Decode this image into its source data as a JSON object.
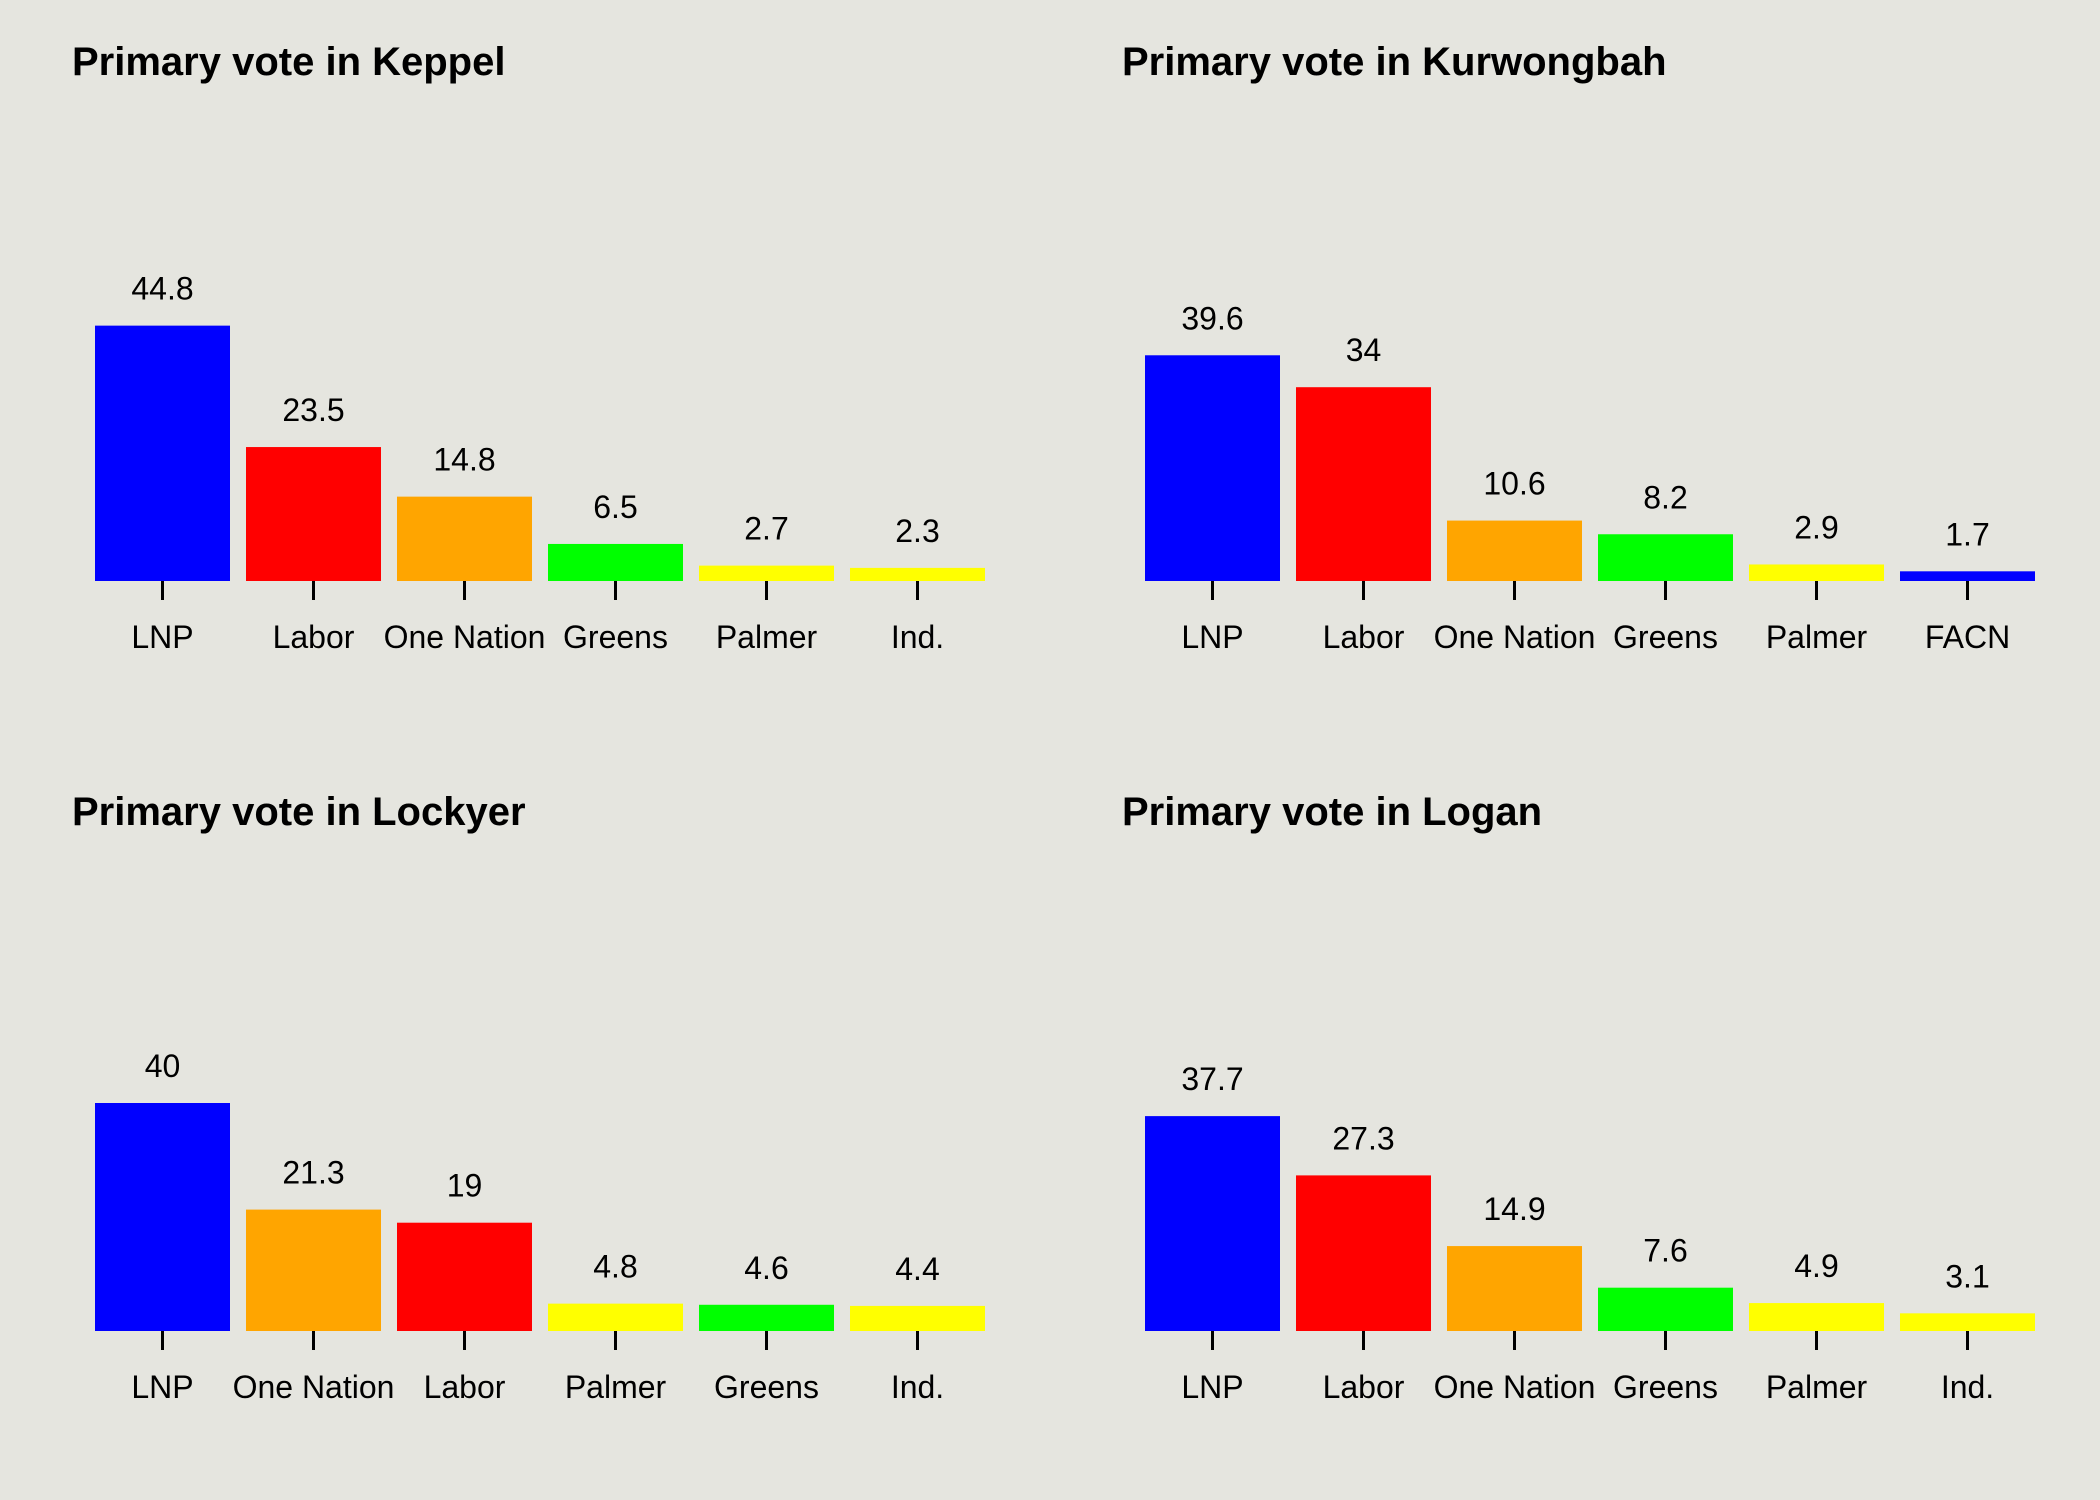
{
  "chart_data": [
    {
      "type": "bar",
      "title": "Primary vote in Keppel",
      "categories": [
        "LNP",
        "Labor",
        "One Nation",
        "Greens",
        "Palmer",
        "Ind."
      ],
      "values": [
        44.8,
        23.5,
        14.8,
        6.5,
        2.7,
        2.3
      ],
      "value_labels": [
        "44.8",
        "23.5",
        "14.8",
        "6.5",
        "2.7",
        "2.3"
      ],
      "colors": [
        "#0000ff",
        "#ff0000",
        "#ffa500",
        "#00ff00",
        "#ffff00",
        "#ffff00"
      ],
      "xlabel": "",
      "ylabel": "",
      "ylim": [
        0,
        100
      ],
      "grid": false,
      "legend": "none"
    },
    {
      "type": "bar",
      "title": "Primary vote in Kurwongbah",
      "categories": [
        "LNP",
        "Labor",
        "One Nation",
        "Greens",
        "Palmer",
        "FACN"
      ],
      "values": [
        39.6,
        34,
        10.6,
        8.2,
        2.9,
        1.7
      ],
      "value_labels": [
        "39.6",
        "34",
        "10.6",
        "8.2",
        "2.9",
        "1.7"
      ],
      "colors": [
        "#0000ff",
        "#ff0000",
        "#ffa500",
        "#00ff00",
        "#ffff00",
        "#0000ff"
      ],
      "xlabel": "",
      "ylabel": "",
      "ylim": [
        0,
        100
      ],
      "grid": false,
      "legend": "none"
    },
    {
      "type": "bar",
      "title": "Primary vote in Lockyer",
      "categories": [
        "LNP",
        "One Nation",
        "Labor",
        "Palmer",
        "Greens",
        "Ind."
      ],
      "values": [
        40,
        21.3,
        19,
        4.8,
        4.6,
        4.4
      ],
      "value_labels": [
        "40",
        "21.3",
        "19",
        "4.8",
        "4.6",
        "4.4"
      ],
      "colors": [
        "#0000ff",
        "#ffa500",
        "#ff0000",
        "#ffff00",
        "#00ff00",
        "#ffff00"
      ],
      "xlabel": "",
      "ylabel": "",
      "ylim": [
        0,
        100
      ],
      "grid": false,
      "legend": "none"
    },
    {
      "type": "bar",
      "title": "Primary vote in Logan",
      "categories": [
        "LNP",
        "Labor",
        "One Nation",
        "Greens",
        "Palmer",
        "Ind."
      ],
      "values": [
        37.7,
        27.3,
        14.9,
        7.6,
        4.9,
        3.1
      ],
      "value_labels": [
        "37.7",
        "27.3",
        "14.9",
        "7.6",
        "4.9",
        "3.1"
      ],
      "colors": [
        "#0000ff",
        "#ff0000",
        "#ffa500",
        "#00ff00",
        "#ffff00",
        "#ffff00"
      ],
      "xlabel": "",
      "ylabel": "",
      "ylim": [
        0,
        100
      ],
      "grid": false,
      "legend": "none"
    }
  ]
}
